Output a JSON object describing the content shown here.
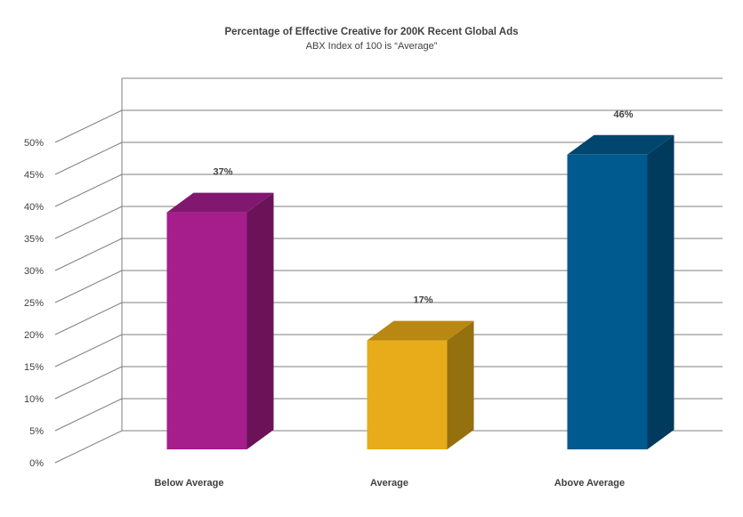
{
  "chart_data": {
    "type": "bar",
    "title": "Percentage of Effective Creative for 200K Recent Global Ads",
    "subtitle": "ABX Index of 100 is “Average”",
    "categories": [
      "Below Average",
      "Average",
      "Above Average"
    ],
    "values": [
      37,
      17,
      46
    ],
    "data_labels": [
      "37%",
      "17%",
      "46%"
    ],
    "ylim": [
      0,
      50
    ],
    "yticks": [
      0,
      5,
      10,
      15,
      20,
      25,
      30,
      35,
      40,
      45,
      50
    ],
    "ytick_labels": [
      "0%",
      "5%",
      "10%",
      "15%",
      "20%",
      "25%",
      "30%",
      "35%",
      "40%",
      "45%",
      "50%"
    ],
    "grid": true,
    "legend": "none",
    "style": "3d-column",
    "colors": [
      {
        "front": "#A51E8C",
        "side": "#6B1259",
        "top": "#82176F"
      },
      {
        "front": "#E8AC1A",
        "side": "#94700F",
        "top": "#B98812"
      },
      {
        "front": "#005A8F",
        "side": "#003A5C",
        "top": "#00466F"
      }
    ],
    "grid_color": "#7F7F7F",
    "text_color": "#404040"
  }
}
